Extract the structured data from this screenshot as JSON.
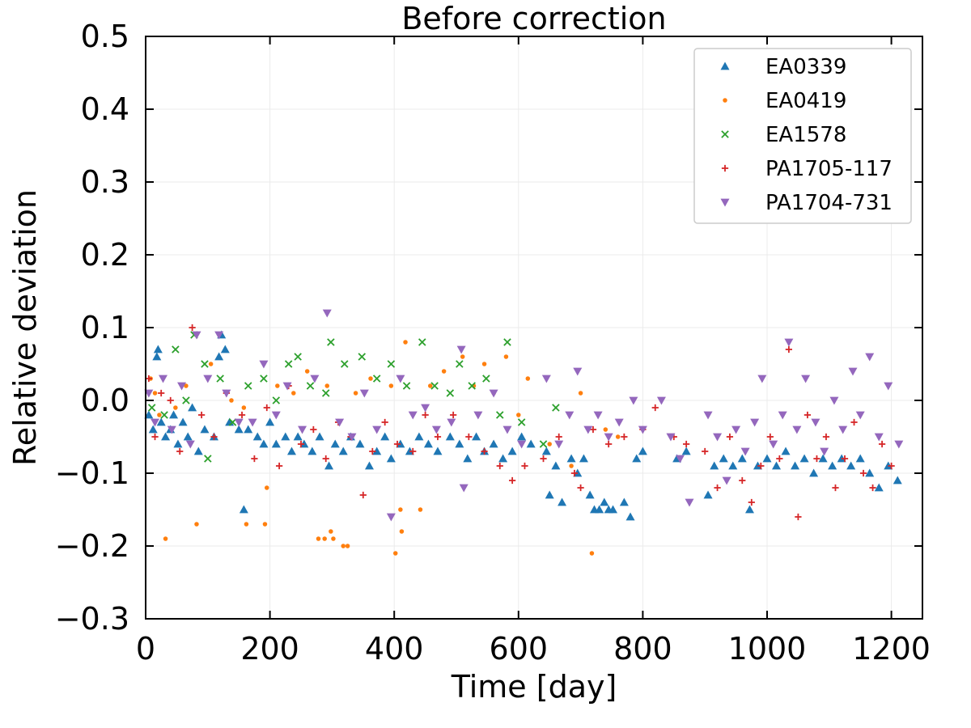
{
  "chart_data": {
    "type": "scatter",
    "title": "Before correction",
    "xlabel": "Time [day]",
    "ylabel": "Relative deviation",
    "xlim": [
      0,
      1250
    ],
    "ylim": [
      -0.3,
      0.5
    ],
    "xticks": [
      0,
      200,
      400,
      600,
      800,
      1000,
      1200
    ],
    "yticks": [
      -0.3,
      -0.2,
      -0.1,
      0.0,
      0.1,
      0.2,
      0.3,
      0.4,
      0.5
    ],
    "xtick_labels": [
      "0",
      "200",
      "400",
      "600",
      "800",
      "1000",
      "1200"
    ],
    "ytick_labels": [
      "−0.3",
      "−0.2",
      "−0.1",
      "0.0",
      "0.1",
      "0.2",
      "0.3",
      "0.4",
      "0.5"
    ],
    "grid": true,
    "legend_position": "top-right",
    "series": [
      {
        "name": "EA0339",
        "marker": "triangle-up",
        "color": "#1f77b4",
        "points": [
          [
            5,
            -0.02
          ],
          [
            12,
            -0.04
          ],
          [
            18,
            0.06
          ],
          [
            20,
            0.07
          ],
          [
            25,
            -0.03
          ],
          [
            32,
            -0.05
          ],
          [
            40,
            -0.04
          ],
          [
            45,
            -0.02
          ],
          [
            52,
            -0.06
          ],
          [
            60,
            -0.03
          ],
          [
            68,
            -0.05
          ],
          [
            75,
            -0.01
          ],
          [
            85,
            -0.07
          ],
          [
            95,
            -0.04
          ],
          [
            110,
            -0.05
          ],
          [
            118,
            0.06
          ],
          [
            122,
            0.09
          ],
          [
            128,
            0.07
          ],
          [
            135,
            -0.03
          ],
          [
            150,
            -0.04
          ],
          [
            158,
            -0.15
          ],
          [
            165,
            -0.04
          ],
          [
            180,
            -0.05
          ],
          [
            190,
            -0.06
          ],
          [
            200,
            -0.03
          ],
          [
            210,
            -0.06
          ],
          [
            225,
            -0.05
          ],
          [
            235,
            -0.07
          ],
          [
            245,
            -0.05
          ],
          [
            255,
            -0.06
          ],
          [
            268,
            -0.07
          ],
          [
            280,
            -0.05
          ],
          [
            295,
            -0.09
          ],
          [
            305,
            -0.06
          ],
          [
            318,
            -0.07
          ],
          [
            330,
            -0.05
          ],
          [
            345,
            -0.06
          ],
          [
            360,
            -0.09
          ],
          [
            372,
            -0.07
          ],
          [
            385,
            -0.05
          ],
          [
            395,
            -0.08
          ],
          [
            410,
            -0.06
          ],
          [
            425,
            -0.07
          ],
          [
            440,
            -0.05
          ],
          [
            455,
            -0.06
          ],
          [
            470,
            -0.07
          ],
          [
            490,
            -0.05
          ],
          [
            505,
            -0.06
          ],
          [
            518,
            -0.08
          ],
          [
            532,
            -0.05
          ],
          [
            545,
            -0.07
          ],
          [
            560,
            -0.06
          ],
          [
            575,
            -0.08
          ],
          [
            590,
            -0.07
          ],
          [
            605,
            -0.05
          ],
          [
            620,
            -0.06
          ],
          [
            645,
            -0.07
          ],
          [
            650,
            -0.13
          ],
          [
            660,
            -0.09
          ],
          [
            670,
            -0.14
          ],
          [
            685,
            -0.08
          ],
          [
            695,
            -0.1
          ],
          [
            705,
            -0.08
          ],
          [
            715,
            -0.13
          ],
          [
            722,
            -0.15
          ],
          [
            730,
            -0.15
          ],
          [
            738,
            -0.14
          ],
          [
            745,
            -0.15
          ],
          [
            752,
            -0.15
          ],
          [
            770,
            -0.14
          ],
          [
            780,
            -0.16
          ],
          [
            790,
            -0.08
          ],
          [
            800,
            -0.07
          ],
          [
            855,
            -0.08
          ],
          [
            870,
            -0.07
          ],
          [
            905,
            -0.13
          ],
          [
            915,
            -0.09
          ],
          [
            930,
            -0.08
          ],
          [
            945,
            -0.09
          ],
          [
            960,
            -0.08
          ],
          [
            972,
            -0.15
          ],
          [
            985,
            -0.09
          ],
          [
            1000,
            -0.08
          ],
          [
            1015,
            -0.09
          ],
          [
            1030,
            -0.07
          ],
          [
            1045,
            -0.09
          ],
          [
            1060,
            -0.08
          ],
          [
            1075,
            -0.1
          ],
          [
            1090,
            -0.08
          ],
          [
            1105,
            -0.09
          ],
          [
            1120,
            -0.08
          ],
          [
            1135,
            -0.09
          ],
          [
            1150,
            -0.08
          ],
          [
            1165,
            -0.1
          ],
          [
            1180,
            -0.12
          ],
          [
            1195,
            -0.09
          ],
          [
            1210,
            -0.11
          ]
        ]
      },
      {
        "name": "EA0419",
        "marker": "circle",
        "color": "#ff7f0e",
        "points": [
          [
            8,
            0.03
          ],
          [
            15,
            0.01
          ],
          [
            22,
            -0.02
          ],
          [
            32,
            -0.19
          ],
          [
            48,
            -0.01
          ],
          [
            65,
            0.02
          ],
          [
            82,
            -0.17
          ],
          [
            105,
            0.05
          ],
          [
            138,
            0.0
          ],
          [
            158,
            -0.01
          ],
          [
            162,
            -0.17
          ],
          [
            192,
            -0.17
          ],
          [
            195,
            -0.12
          ],
          [
            212,
            0.02
          ],
          [
            238,
            0.01
          ],
          [
            260,
            0.04
          ],
          [
            278,
            -0.19
          ],
          [
            288,
            -0.19
          ],
          [
            292,
            0.02
          ],
          [
            298,
            -0.18
          ],
          [
            302,
            -0.19
          ],
          [
            318,
            -0.2
          ],
          [
            325,
            -0.2
          ],
          [
            338,
            0.01
          ],
          [
            362,
            0.03
          ],
          [
            395,
            0.02
          ],
          [
            402,
            -0.21
          ],
          [
            410,
            -0.15
          ],
          [
            412,
            -0.18
          ],
          [
            418,
            0.08
          ],
          [
            442,
            -0.15
          ],
          [
            458,
            0.02
          ],
          [
            480,
            0.04
          ],
          [
            510,
            0.06
          ],
          [
            528,
            0.02
          ],
          [
            545,
            0.05
          ],
          [
            560,
            0.01
          ],
          [
            580,
            0.06
          ],
          [
            600,
            -0.02
          ],
          [
            615,
            0.03
          ],
          [
            650,
            -0.06
          ],
          [
            685,
            -0.09
          ],
          [
            700,
            0.01
          ],
          [
            718,
            -0.21
          ],
          [
            740,
            -0.04
          ],
          [
            760,
            -0.05
          ]
        ]
      },
      {
        "name": "EA1578",
        "marker": "x",
        "color": "#2ca02c",
        "points": [
          [
            10,
            -0.01
          ],
          [
            30,
            -0.02
          ],
          [
            48,
            0.07
          ],
          [
            65,
            0.0
          ],
          [
            78,
            0.09
          ],
          [
            95,
            0.05
          ],
          [
            100,
            -0.08
          ],
          [
            120,
            0.03
          ],
          [
            140,
            -0.03
          ],
          [
            165,
            0.02
          ],
          [
            190,
            0.03
          ],
          [
            210,
            0.0
          ],
          [
            230,
            0.05
          ],
          [
            245,
            0.06
          ],
          [
            265,
            0.02
          ],
          [
            290,
            0.01
          ],
          [
            298,
            0.08
          ],
          [
            320,
            0.05
          ],
          [
            348,
            0.06
          ],
          [
            372,
            0.03
          ],
          [
            395,
            0.05
          ],
          [
            420,
            0.02
          ],
          [
            445,
            0.08
          ],
          [
            465,
            0.02
          ],
          [
            490,
            0.01
          ],
          [
            505,
            0.05
          ],
          [
            525,
            0.02
          ],
          [
            548,
            0.03
          ],
          [
            570,
            -0.02
          ],
          [
            582,
            0.08
          ],
          [
            605,
            -0.03
          ],
          [
            640,
            -0.06
          ],
          [
            660,
            -0.01
          ]
        ]
      },
      {
        "name": "PA1705-117",
        "marker": "plus",
        "color": "#d62728",
        "points": [
          [
            5,
            0.03
          ],
          [
            15,
            -0.05
          ],
          [
            25,
            0.01
          ],
          [
            40,
            0.0
          ],
          [
            55,
            -0.07
          ],
          [
            75,
            0.1
          ],
          [
            90,
            -0.02
          ],
          [
            110,
            -0.05
          ],
          [
            130,
            0.01
          ],
          [
            155,
            -0.02
          ],
          [
            175,
            -0.08
          ],
          [
            195,
            -0.01
          ],
          [
            215,
            -0.09
          ],
          [
            230,
            0.02
          ],
          [
            250,
            -0.06
          ],
          [
            270,
            -0.04
          ],
          [
            290,
            -0.08
          ],
          [
            310,
            -0.03
          ],
          [
            330,
            -0.05
          ],
          [
            350,
            -0.13
          ],
          [
            365,
            -0.07
          ],
          [
            385,
            -0.03
          ],
          [
            405,
            -0.06
          ],
          [
            430,
            -0.07
          ],
          [
            450,
            -0.02
          ],
          [
            470,
            -0.05
          ],
          [
            495,
            -0.02
          ],
          [
            520,
            -0.05
          ],
          [
            545,
            -0.07
          ],
          [
            570,
            -0.09
          ],
          [
            590,
            -0.11
          ],
          [
            610,
            -0.09
          ],
          [
            640,
            -0.08
          ],
          [
            665,
            -0.05
          ],
          [
            690,
            -0.1
          ],
          [
            700,
            -0.12
          ],
          [
            720,
            -0.04
          ],
          [
            745,
            -0.06
          ],
          [
            770,
            -0.05
          ],
          [
            800,
            -0.04
          ],
          [
            820,
            -0.01
          ],
          [
            850,
            -0.05
          ],
          [
            870,
            -0.06
          ],
          [
            900,
            -0.07
          ],
          [
            920,
            -0.12
          ],
          [
            940,
            -0.05
          ],
          [
            960,
            -0.11
          ],
          [
            975,
            -0.14
          ],
          [
            990,
            -0.09
          ],
          [
            1005,
            -0.05
          ],
          [
            1020,
            -0.08
          ],
          [
            1035,
            0.07
          ],
          [
            1050,
            -0.16
          ],
          [
            1065,
            -0.02
          ],
          [
            1080,
            -0.08
          ],
          [
            1095,
            -0.05
          ],
          [
            1110,
            -0.12
          ],
          [
            1125,
            -0.08
          ],
          [
            1140,
            -0.03
          ],
          [
            1155,
            -0.1
          ],
          [
            1170,
            -0.12
          ],
          [
            1185,
            -0.06
          ],
          [
            1200,
            -0.09
          ]
        ]
      },
      {
        "name": "PA1704-731",
        "marker": "triangle-down",
        "color": "#9467bd",
        "points": [
          [
            5,
            0.01
          ],
          [
            15,
            -0.03
          ],
          [
            28,
            0.03
          ],
          [
            42,
            -0.04
          ],
          [
            58,
            0.02
          ],
          [
            72,
            -0.06
          ],
          [
            82,
            0.09
          ],
          [
            100,
            0.03
          ],
          [
            118,
            0.09
          ],
          [
            130,
            0.01
          ],
          [
            150,
            -0.03
          ],
          [
            172,
            -0.03
          ],
          [
            190,
            0.05
          ],
          [
            210,
            -0.02
          ],
          [
            228,
            0.02
          ],
          [
            252,
            -0.04
          ],
          [
            272,
            0.03
          ],
          [
            292,
            0.12
          ],
          [
            312,
            -0.03
          ],
          [
            332,
            -0.05
          ],
          [
            352,
            0.01
          ],
          [
            372,
            -0.04
          ],
          [
            395,
            -0.16
          ],
          [
            410,
            0.03
          ],
          [
            430,
            -0.02
          ],
          [
            450,
            -0.01
          ],
          [
            468,
            -0.04
          ],
          [
            492,
            -0.03
          ],
          [
            508,
            0.07
          ],
          [
            512,
            -0.12
          ],
          [
            535,
            -0.02
          ],
          [
            560,
            0.01
          ],
          [
            582,
            -0.04
          ],
          [
            605,
            -0.06
          ],
          [
            645,
            0.03
          ],
          [
            665,
            -0.06
          ],
          [
            682,
            -0.02
          ],
          [
            695,
            0.04
          ],
          [
            712,
            -0.04
          ],
          [
            728,
            -0.02
          ],
          [
            745,
            -0.05
          ],
          [
            762,
            -0.03
          ],
          [
            785,
            0.0
          ],
          [
            800,
            -0.04
          ],
          [
            830,
            0.0
          ],
          [
            845,
            -0.05
          ],
          [
            860,
            -0.08
          ],
          [
            875,
            -0.14
          ],
          [
            905,
            -0.02
          ],
          [
            920,
            -0.05
          ],
          [
            935,
            -0.11
          ],
          [
            950,
            -0.04
          ],
          [
            965,
            -0.07
          ],
          [
            980,
            -0.03
          ],
          [
            992,
            0.03
          ],
          [
            1010,
            -0.06
          ],
          [
            1025,
            -0.02
          ],
          [
            1035,
            0.08
          ],
          [
            1048,
            -0.04
          ],
          [
            1062,
            0.03
          ],
          [
            1078,
            -0.03
          ],
          [
            1092,
            -0.07
          ],
          [
            1108,
            0.0
          ],
          [
            1122,
            -0.04
          ],
          [
            1138,
            0.04
          ],
          [
            1150,
            -0.02
          ],
          [
            1165,
            0.06
          ],
          [
            1180,
            -0.05
          ],
          [
            1195,
            0.02
          ],
          [
            1212,
            -0.06
          ]
        ]
      }
    ]
  }
}
